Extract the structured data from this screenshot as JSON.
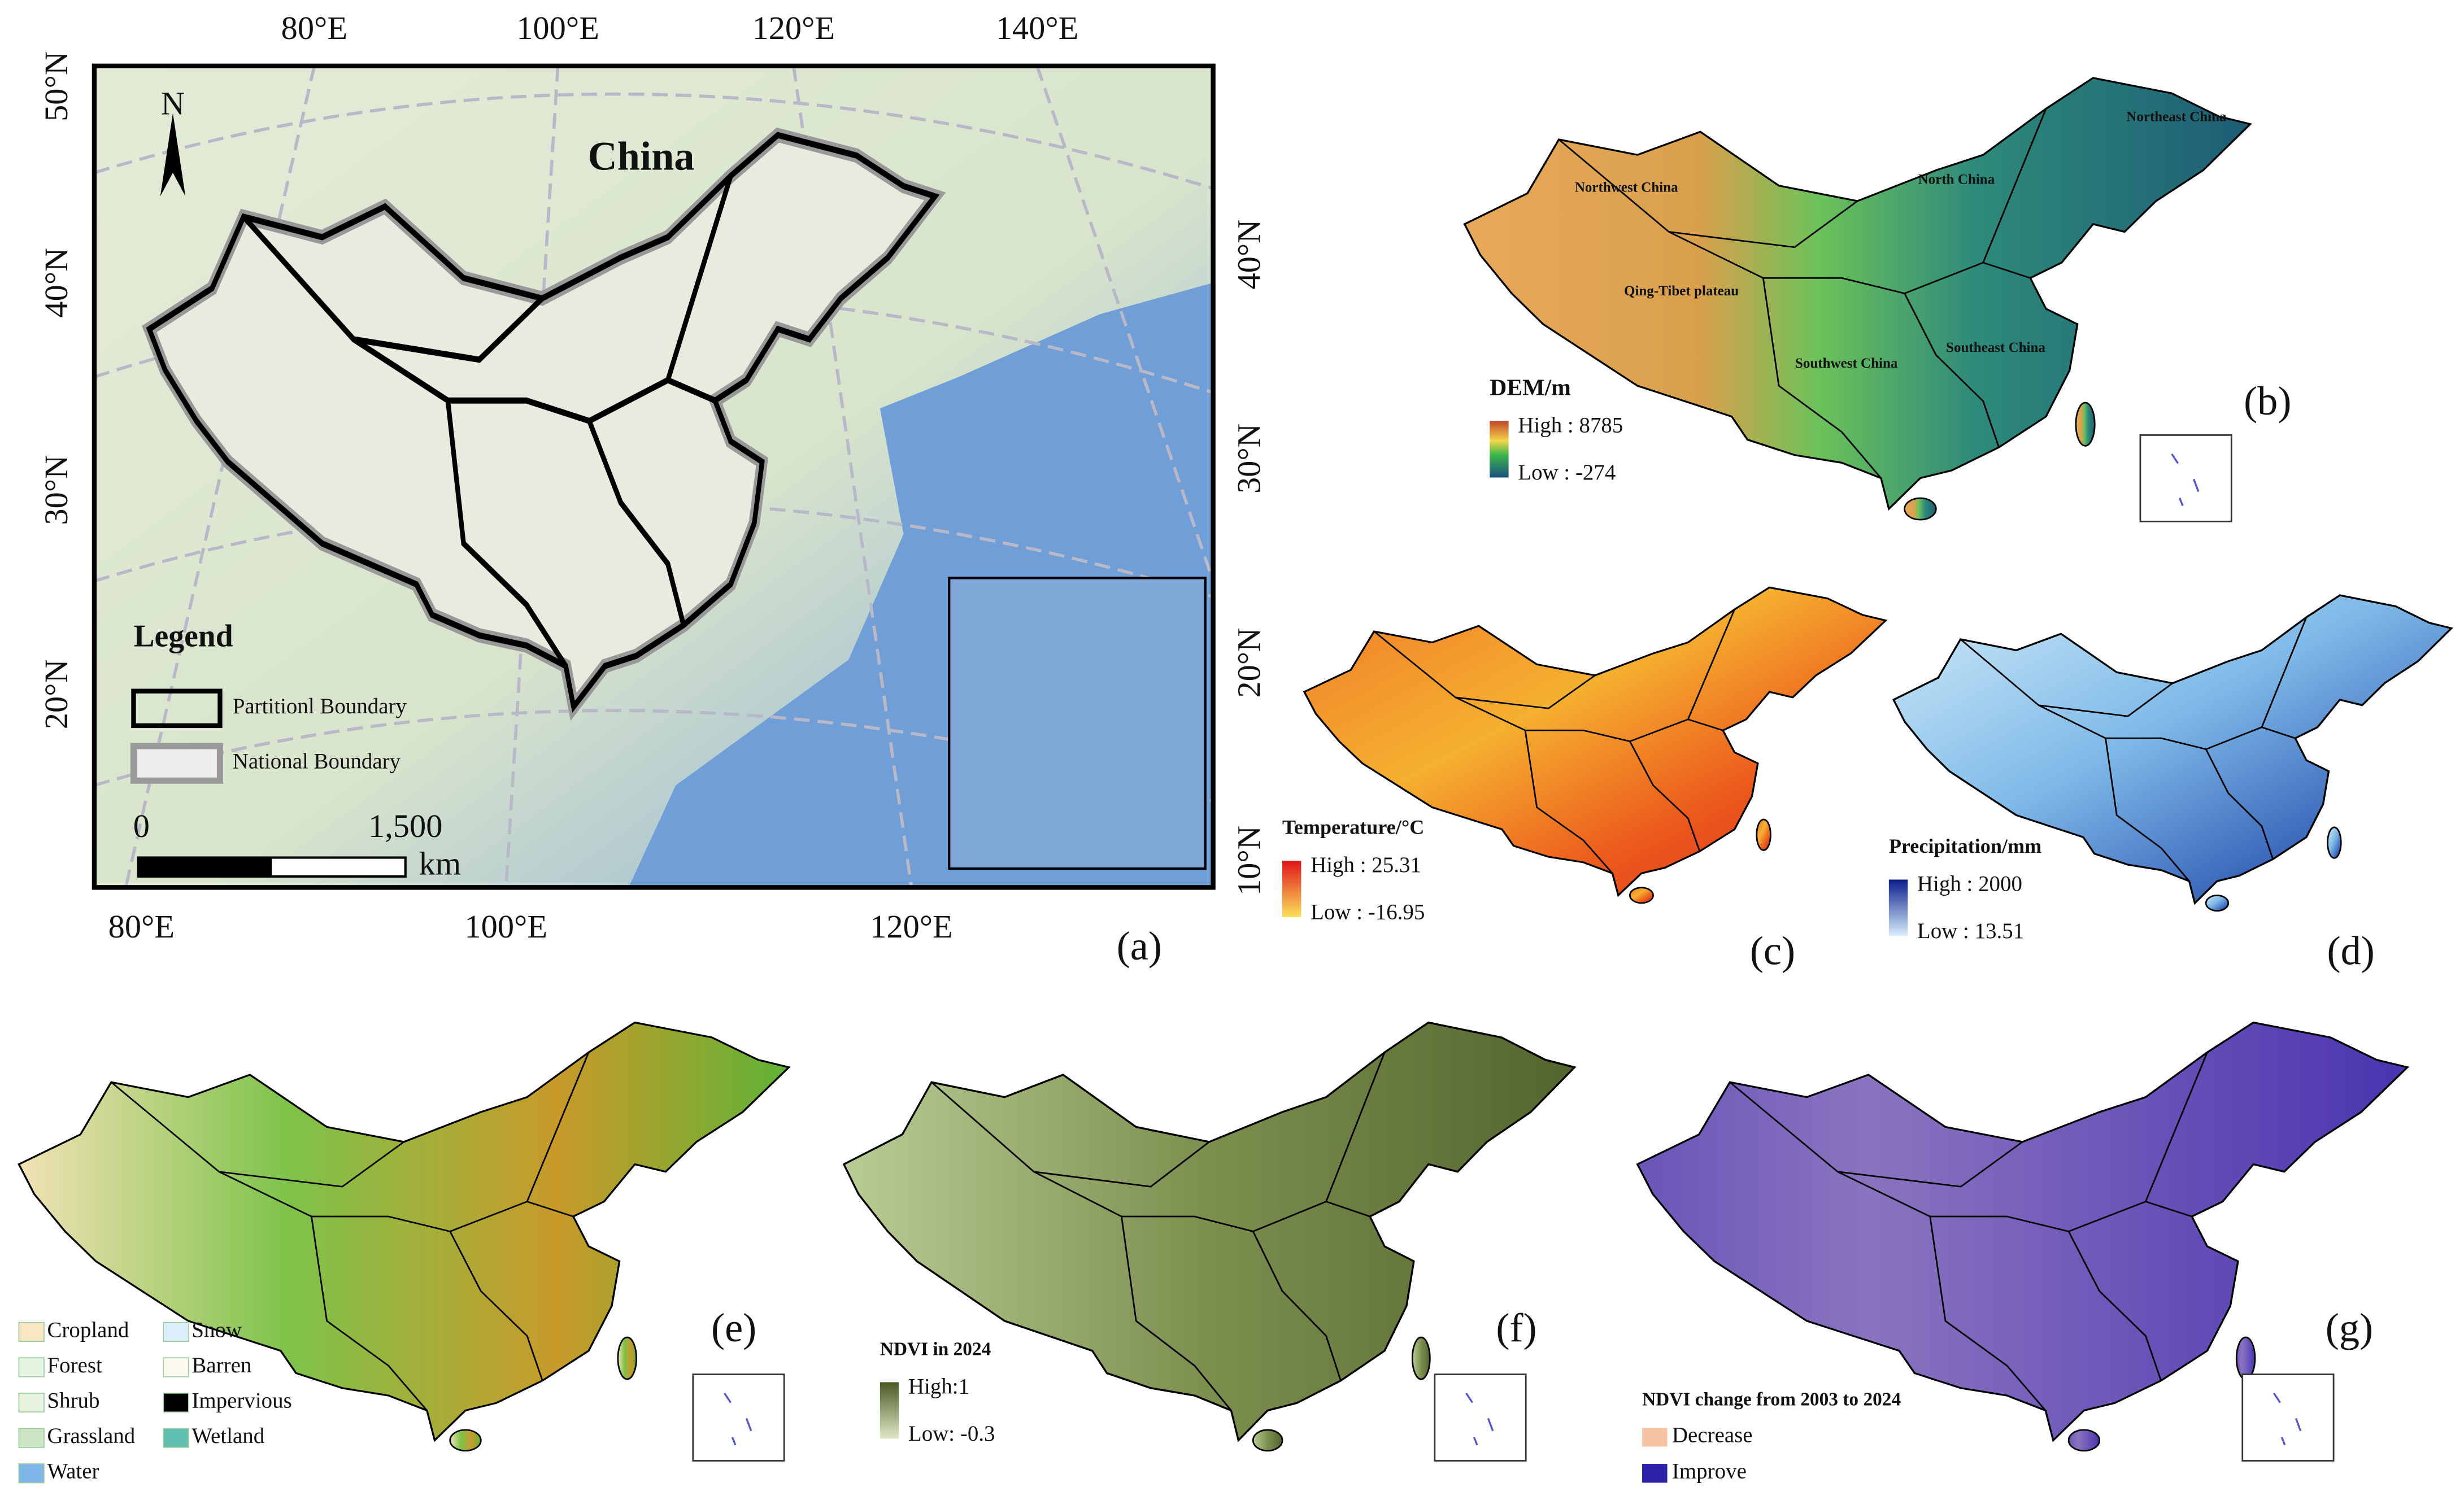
{
  "panel_a": {
    "label": "(a)",
    "title": "China",
    "north": "N",
    "top_ticks": [
      "80°E",
      "100°E",
      "120°E",
      "140°E"
    ],
    "left_ticks": [
      "50°N",
      "40°N",
      "30°N",
      "20°N"
    ],
    "right_ticks": [
      "40°N",
      "30°N",
      "20°N",
      "10°N"
    ],
    "bottom_ticks": [
      "80°E",
      "100°E",
      "120°E"
    ],
    "legend": {
      "title": "Legend",
      "items": [
        "Partitionl Boundary",
        "National Boundary"
      ]
    },
    "scale_bar": {
      "start": "0",
      "end": "1,500",
      "unit": "km"
    }
  },
  "panel_b": {
    "label": "(b)",
    "regions": [
      "Northwest China",
      "North China",
      "Northeast China",
      "Qing-Tibet plateau",
      "Southwest China",
      "Southeast China"
    ],
    "legend_title": "DEM/m",
    "high": "High : 8785",
    "low": "Low : -274"
  },
  "panel_c": {
    "label": "(c)",
    "legend_title": "Temperature/°C",
    "high": "High : 25.31",
    "low": "Low : -16.95"
  },
  "panel_d": {
    "label": "(d)",
    "legend_title": "Precipitation/mm",
    "high": "High : 2000",
    "low": "Low : 13.51"
  },
  "panel_e": {
    "label": "(e)",
    "legend": [
      "Cropland",
      "Forest",
      "Shrub",
      "Grassland",
      "Water",
      "Snow",
      "Barren",
      "Impervious",
      "Wetland"
    ]
  },
  "panel_f": {
    "label": "(f)",
    "legend_title": "NDVI in 2024",
    "high": "High:1",
    "low": "Low: -0.3"
  },
  "panel_g": {
    "label": "(g)",
    "legend_title": "NDVI change from 2003 to 2024",
    "items": [
      "Decrease",
      "Improve"
    ]
  }
}
